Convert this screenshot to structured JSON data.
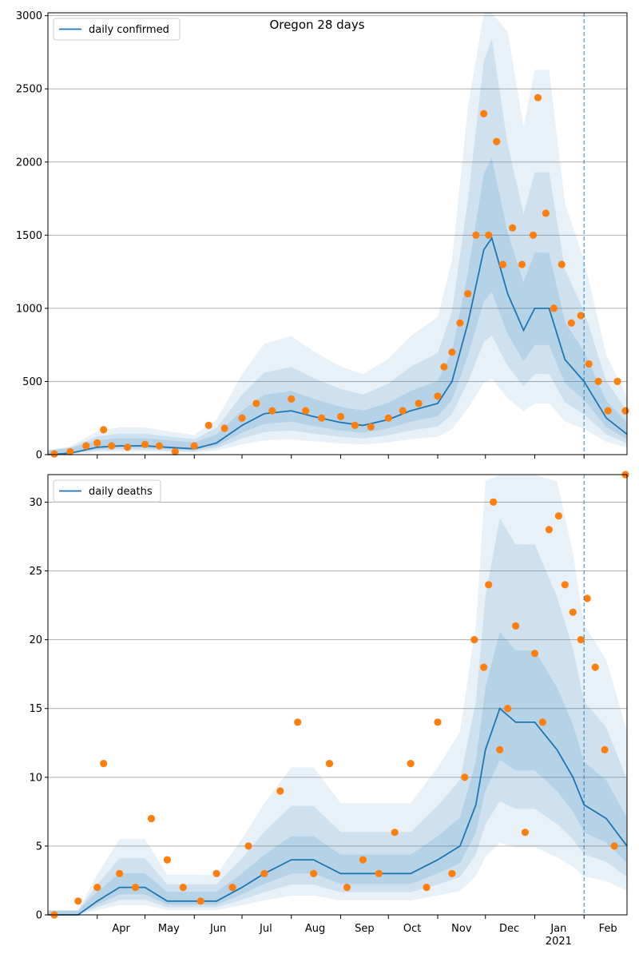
{
  "colors": {
    "line": "#1f77b4",
    "points": "#ff7f0e",
    "band": "#1f77b4",
    "grid": "#b0b0b0",
    "vline": "#1f77b4"
  },
  "x_ticks": {
    "months": [
      "Apr",
      "May",
      "Jun",
      "Jul",
      "Aug",
      "Sep",
      "Oct",
      "Nov",
      "Dec",
      "Jan",
      "Feb"
    ],
    "year_label": "2021"
  },
  "chart_data": [
    {
      "type": "line",
      "title": "Oregon 28 days",
      "legend": [
        "daily confirmed"
      ],
      "legend_position": "top-left",
      "grid": "horizontal",
      "x_range": [
        "2020-03-01",
        "2021-02-28"
      ],
      "ylim": [
        0,
        3020
      ],
      "yticks": [
        0,
        500,
        1000,
        1500,
        2000,
        2500,
        3000
      ],
      "forecast_start": "2021-02-01",
      "series": [
        {
          "name": "daily confirmed",
          "x": [
            "2020-03-01",
            "2020-03-15",
            "2020-04-01",
            "2020-04-15",
            "2020-05-01",
            "2020-05-15",
            "2020-06-01",
            "2020-06-15",
            "2020-07-01",
            "2020-07-15",
            "2020-08-01",
            "2020-08-15",
            "2020-09-01",
            "2020-09-15",
            "2020-10-01",
            "2020-10-15",
            "2020-11-01",
            "2020-11-10",
            "2020-11-20",
            "2020-11-30",
            "2020-12-05",
            "2020-12-15",
            "2020-12-25",
            "2021-01-01",
            "2021-01-10",
            "2021-01-20",
            "2021-02-01",
            "2021-02-15",
            "2021-02-28"
          ],
          "y": [
            0,
            10,
            50,
            60,
            60,
            50,
            40,
            80,
            200,
            280,
            300,
            260,
            220,
            200,
            240,
            300,
            350,
            500,
            900,
            1400,
            1480,
            1100,
            850,
            1000,
            1000,
            650,
            500,
            250,
            140
          ]
        }
      ],
      "observed": {
        "x": [
          "2020-03-05",
          "2020-03-15",
          "2020-03-25",
          "2020-04-01",
          "2020-04-05",
          "2020-04-10",
          "2020-04-20",
          "2020-05-01",
          "2020-05-10",
          "2020-05-20",
          "2020-06-01",
          "2020-06-10",
          "2020-06-20",
          "2020-07-01",
          "2020-07-10",
          "2020-07-20",
          "2020-08-01",
          "2020-08-10",
          "2020-08-20",
          "2020-09-01",
          "2020-09-10",
          "2020-09-20",
          "2020-10-01",
          "2020-10-10",
          "2020-10-20",
          "2020-11-01",
          "2020-11-05",
          "2020-11-10",
          "2020-11-15",
          "2020-11-20",
          "2020-11-25",
          "2020-11-30",
          "2020-12-03",
          "2020-12-08",
          "2020-12-12",
          "2020-12-18",
          "2020-12-24",
          "2020-12-31",
          "2021-01-03",
          "2021-01-08",
          "2021-01-13",
          "2021-01-18",
          "2021-01-24",
          "2021-01-30",
          "2021-02-04",
          "2021-02-10",
          "2021-02-16",
          "2021-02-22",
          "2021-02-27"
        ],
        "y": [
          5,
          20,
          60,
          80,
          170,
          60,
          50,
          70,
          60,
          20,
          60,
          200,
          180,
          250,
          350,
          300,
          380,
          300,
          250,
          260,
          200,
          190,
          250,
          300,
          350,
          400,
          600,
          700,
          900,
          1100,
          1500,
          2330,
          1500,
          2140,
          1300,
          1550,
          1300,
          1500,
          2440,
          1650,
          1000,
          1300,
          900,
          950,
          620,
          500,
          300,
          500,
          300
        ]
      }
    },
    {
      "type": "line",
      "title": "",
      "legend": [
        "daily deaths"
      ],
      "legend_position": "top-left",
      "grid": "horizontal",
      "x_range": [
        "2020-03-01",
        "2021-02-28"
      ],
      "ylim": [
        0,
        32
      ],
      "yticks": [
        0,
        5,
        10,
        15,
        20,
        25,
        30
      ],
      "forecast_start": "2021-02-01",
      "series": [
        {
          "name": "daily deaths",
          "x": [
            "2020-03-01",
            "2020-03-20",
            "2020-04-01",
            "2020-04-15",
            "2020-05-01",
            "2020-05-15",
            "2020-06-01",
            "2020-06-15",
            "2020-07-01",
            "2020-07-15",
            "2020-08-01",
            "2020-08-15",
            "2020-09-01",
            "2020-09-15",
            "2020-10-01",
            "2020-10-15",
            "2020-11-01",
            "2020-11-15",
            "2020-11-25",
            "2020-12-01",
            "2020-12-10",
            "2020-12-20",
            "2021-01-01",
            "2021-01-15",
            "2021-01-25",
            "2021-02-01",
            "2021-02-15",
            "2021-02-28"
          ],
          "y": [
            0,
            0,
            1,
            2,
            2,
            1,
            1,
            1,
            2,
            3,
            4,
            4,
            3,
            3,
            3,
            3,
            4,
            5,
            8,
            12,
            15,
            14,
            14,
            12,
            10,
            8,
            7,
            5
          ]
        }
      ],
      "observed": {
        "x": [
          "2020-03-05",
          "2020-03-20",
          "2020-04-01",
          "2020-04-05",
          "2020-04-15",
          "2020-04-25",
          "2020-05-05",
          "2020-05-15",
          "2020-05-25",
          "2020-06-05",
          "2020-06-15",
          "2020-06-25",
          "2020-07-05",
          "2020-07-15",
          "2020-07-25",
          "2020-08-05",
          "2020-08-15",
          "2020-08-25",
          "2020-09-05",
          "2020-09-15",
          "2020-09-25",
          "2020-10-05",
          "2020-10-15",
          "2020-10-25",
          "2020-11-01",
          "2020-11-10",
          "2020-11-18",
          "2020-11-24",
          "2020-11-30",
          "2020-12-03",
          "2020-12-06",
          "2020-12-10",
          "2020-12-15",
          "2020-12-20",
          "2020-12-26",
          "2021-01-01",
          "2021-01-06",
          "2021-01-10",
          "2021-01-16",
          "2021-01-20",
          "2021-01-25",
          "2021-01-30",
          "2021-02-03",
          "2021-02-08",
          "2021-02-14",
          "2021-02-20",
          "2021-02-27"
        ],
        "y": [
          0,
          1,
          2,
          11,
          3,
          2,
          7,
          4,
          2,
          1,
          3,
          2,
          5,
          3,
          9,
          14,
          3,
          11,
          2,
          4,
          3,
          6,
          11,
          2,
          14,
          3,
          10,
          20,
          18,
          24,
          30,
          12,
          15,
          21,
          6,
          19,
          14,
          28,
          29,
          24,
          22,
          20,
          23,
          18,
          12,
          5,
          32
        ]
      }
    }
  ]
}
